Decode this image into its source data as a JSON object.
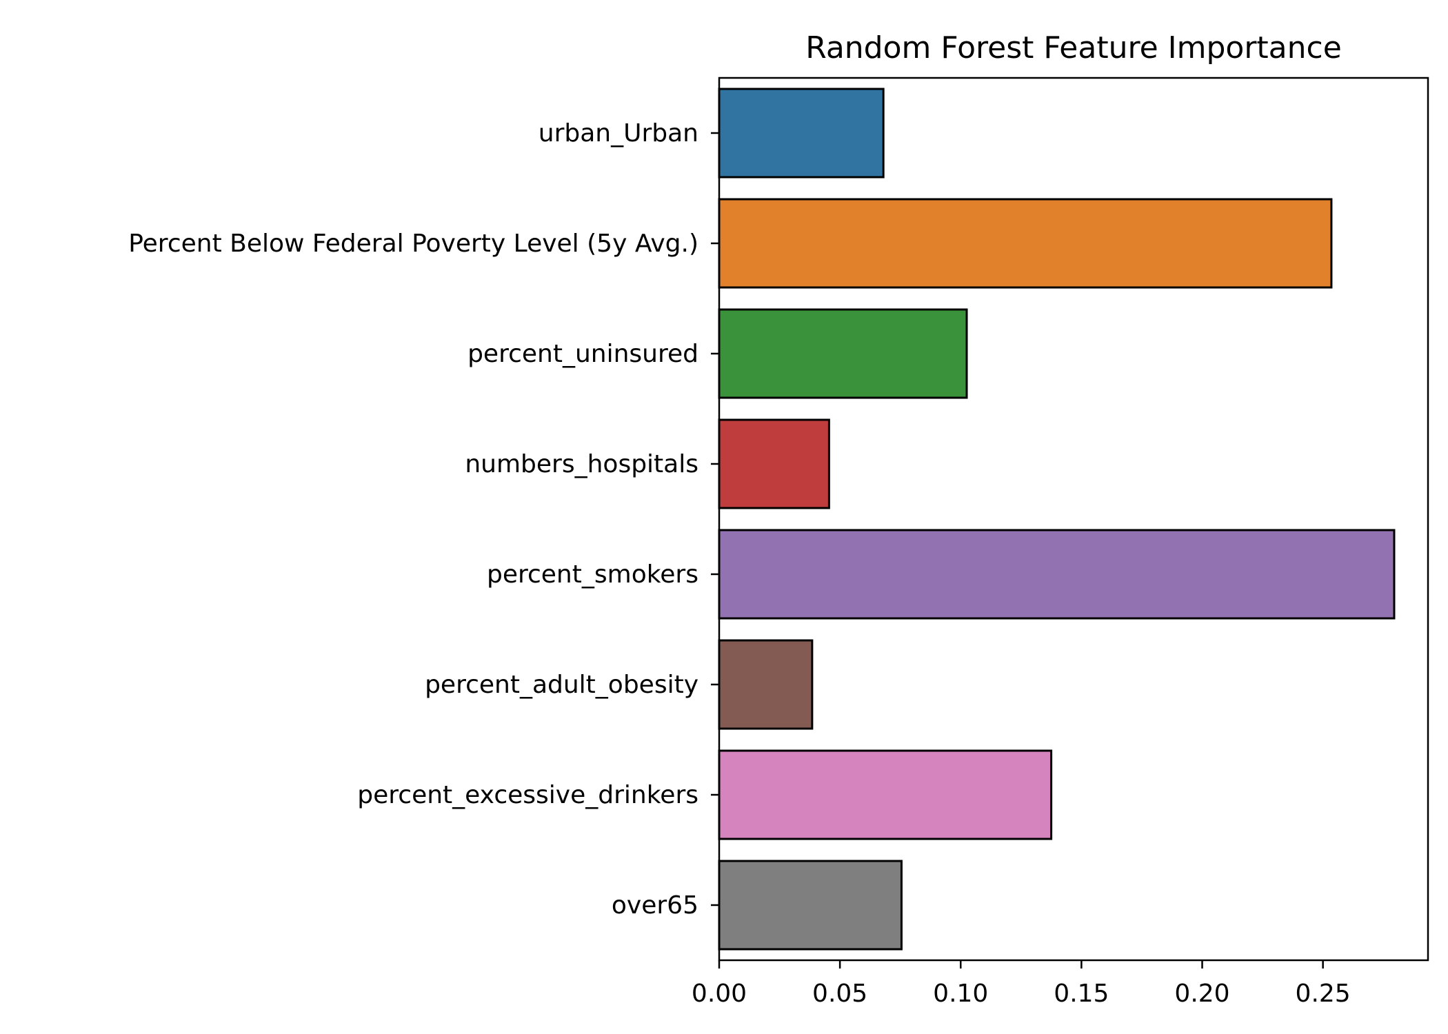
{
  "chart_data": {
    "type": "bar",
    "orientation": "horizontal",
    "title": "Random Forest Feature Importance",
    "xlabel": "",
    "ylabel": "",
    "xlim": [
      0,
      0.2935
    ],
    "grid": false,
    "legend": "none",
    "categories": [
      "urban_Urban",
      "Percent Below Federal Poverty Level (5y Avg.)",
      "percent_uninsured",
      "numbers_hospitals",
      "percent_smokers",
      "percent_adult_obesity",
      "percent_excessive_drinkers",
      "over65"
    ],
    "values": [
      0.068,
      0.2535,
      0.1025,
      0.0455,
      0.2795,
      0.0385,
      0.1375,
      0.0755
    ],
    "colors": [
      "#3274a1",
      "#e1812c",
      "#3a923a",
      "#c03d3e",
      "#9372b2",
      "#845b53",
      "#d684bd",
      "#7f7f7f"
    ],
    "xticks": [
      0.0,
      0.05,
      0.1,
      0.15,
      0.2,
      0.25
    ],
    "xtick_labels": [
      "0.00",
      "0.05",
      "0.10",
      "0.15",
      "0.20",
      "0.25"
    ]
  }
}
